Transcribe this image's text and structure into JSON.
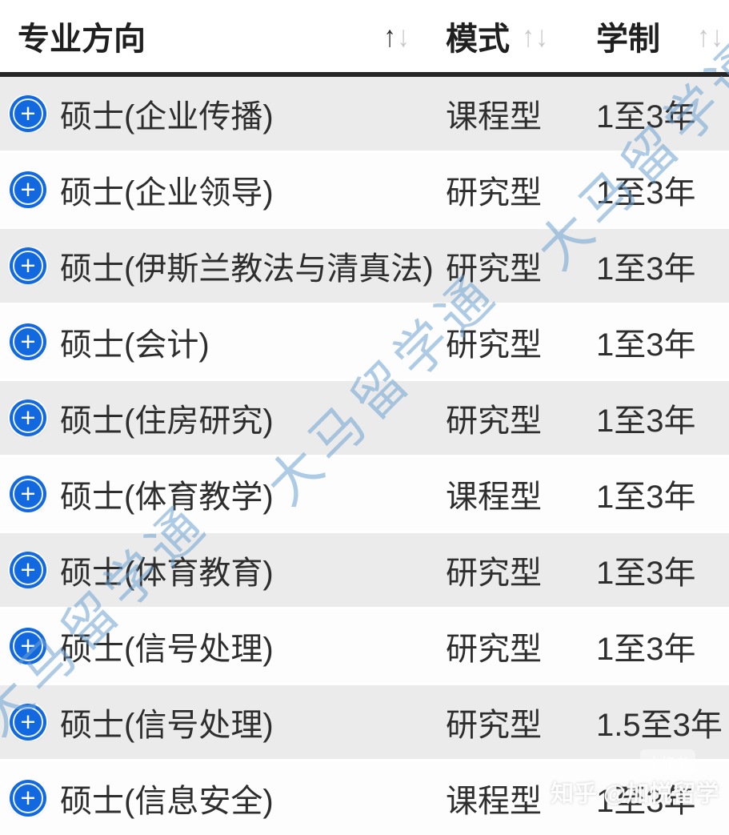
{
  "header": {
    "columns": [
      {
        "label": "专业方向",
        "sort_state": "ascending"
      },
      {
        "label": "模式",
        "sort_state": "none"
      },
      {
        "label": "学制",
        "sort_state": "none"
      }
    ]
  },
  "icons": {
    "sort_asc": "↑",
    "sort_desc": "↓",
    "expand_plus": "+"
  },
  "table": {
    "rows": [
      {
        "major": "硕士(企业传播)",
        "mode": "课程型",
        "duration": "1至3年"
      },
      {
        "major": "硕士(企业领导)",
        "mode": "研究型",
        "duration": "1至3年"
      },
      {
        "major": "硕士(伊斯兰教法与清真法)",
        "mode": "研究型",
        "duration": "1至3年"
      },
      {
        "major": "硕士(会计)",
        "mode": "研究型",
        "duration": "1至3年"
      },
      {
        "major": "硕士(住房研究)",
        "mode": "研究型",
        "duration": "1至3年"
      },
      {
        "major": "硕士(体育教学)",
        "mode": "课程型",
        "duration": "1至3年"
      },
      {
        "major": "硕士(体育教育)",
        "mode": "研究型",
        "duration": "1至3年"
      },
      {
        "major": "硕士(信号处理)",
        "mode": "研究型",
        "duration": "1至3年"
      },
      {
        "major": "硕士(信号处理)",
        "mode": "研究型",
        "duration": "1.5至3年"
      },
      {
        "major": "硕士(信息安全)",
        "mode": "课程型",
        "duration": "1至3年"
      }
    ]
  },
  "watermarks": {
    "diagonal_text": "大马留学通",
    "zhihu_credit": "知乎 @加悦留学",
    "badge": "小红书"
  },
  "colors": {
    "accent_blue": "#1268df",
    "row_alt_bg": "#ebebeb",
    "header_border": "#262626",
    "watermark_blue": "#6da2d2",
    "sort_active": "#2b2b2b",
    "sort_inactive": "#c8c8c8"
  }
}
